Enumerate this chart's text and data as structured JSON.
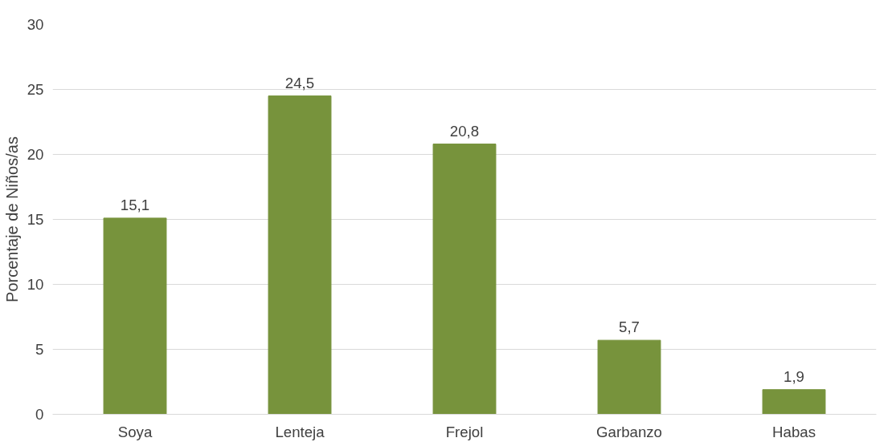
{
  "chart_data": {
    "type": "bar",
    "ylabel": "Porcentaje de Niños/as",
    "categories": [
      "Soya",
      "Lenteja",
      "Frejol",
      "Garbanzo",
      "Habas"
    ],
    "values": [
      15.1,
      24.5,
      20.8,
      5.7,
      1.9
    ],
    "value_labels": [
      "15,1",
      "24,5",
      "20,8",
      "5,7",
      "1,9"
    ],
    "color": "#77933c",
    "ylim": [
      0,
      30
    ],
    "yticks": [
      0,
      5,
      10,
      15,
      20,
      25,
      30
    ],
    "grid": "y"
  }
}
